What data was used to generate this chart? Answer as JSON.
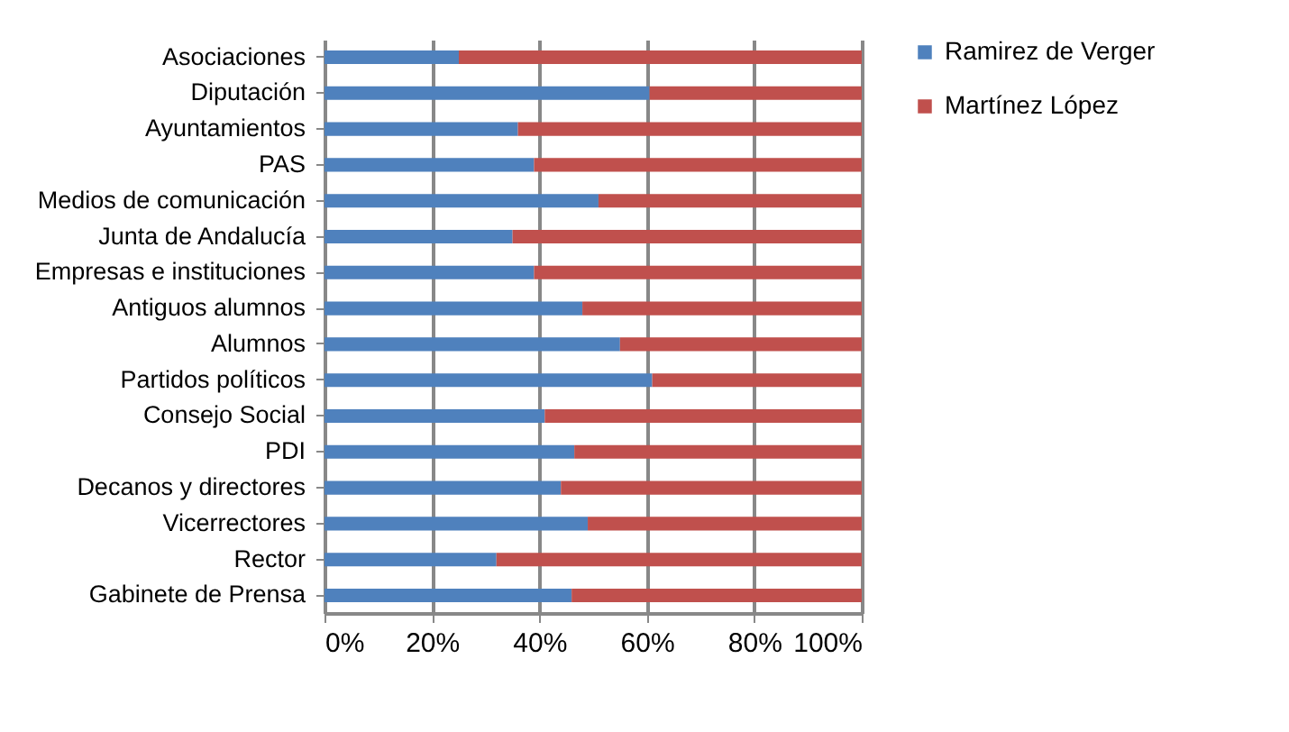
{
  "chart_data": {
    "type": "bar",
    "orientation": "horizontal",
    "stacked": true,
    "categories": [
      "Asociaciones",
      "Diputación",
      "Ayuntamientos",
      "PAS",
      "Medios de comunicación",
      "Junta de Andalucía",
      "Empresas e instituciones",
      "Antiguos alumnos",
      "Alumnos",
      "Partidos políticos",
      "Consejo Social",
      "PDI",
      "Decanos y directores",
      "Vicerrectores",
      "Rector",
      "Gabinete de Prensa"
    ],
    "series": [
      {
        "name": "Ramirez de Verger",
        "color": "#4f81bd",
        "values": [
          25,
          60.5,
          36,
          39,
          51,
          35,
          39,
          48,
          55,
          61,
          41,
          46.5,
          44,
          49,
          32,
          46
        ]
      },
      {
        "name": "Martínez López",
        "color": "#c0504d",
        "values": [
          75,
          39.5,
          64,
          61,
          49,
          65,
          61,
          52,
          45,
          39,
          59,
          53.5,
          56,
          51,
          68,
          54
        ]
      }
    ],
    "xlim": [
      0,
      100
    ],
    "xticks": [
      {
        "value": 0,
        "label": "0%"
      },
      {
        "value": 20,
        "label": "20%"
      },
      {
        "value": 40,
        "label": "40%"
      },
      {
        "value": 60,
        "label": "60%"
      },
      {
        "value": 80,
        "label": "80%"
      },
      {
        "value": 100,
        "label": "100%"
      }
    ],
    "grid": "x",
    "legend": "right"
  }
}
